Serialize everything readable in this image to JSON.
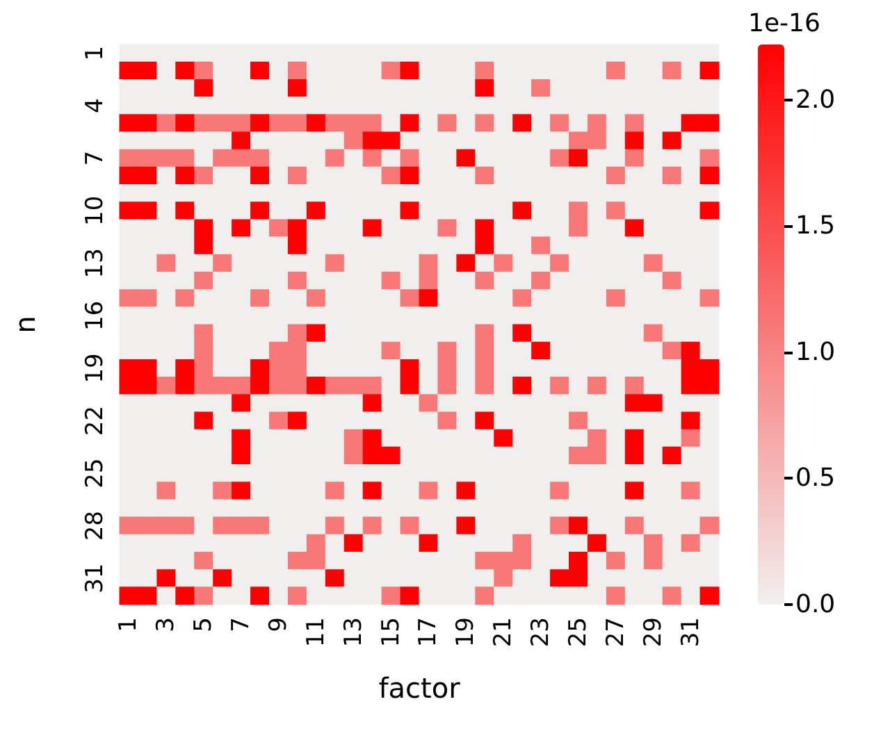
{
  "chart_data": {
    "type": "heatmap",
    "xlabel": "factor",
    "ylabel": "n",
    "clabel": "1e-16",
    "categories": [
      "1",
      null,
      "3",
      null,
      "5",
      null,
      "7",
      null,
      "9",
      null,
      "11",
      null,
      "13",
      null,
      "15",
      null,
      "17",
      null,
      "19",
      null,
      "21",
      null,
      "23",
      null,
      "25",
      null,
      "27",
      null,
      "29",
      null,
      "31",
      null
    ],
    "y_categories": [
      "1",
      null,
      null,
      "4",
      null,
      null,
      "7",
      null,
      null,
      "10",
      null,
      null,
      "13",
      null,
      null,
      "16",
      null,
      null,
      "19",
      null,
      null,
      "22",
      null,
      null,
      "25",
      null,
      null,
      "28",
      null,
      null,
      "31",
      null
    ],
    "clim": [
      0,
      2.22
    ],
    "cticks": [
      {
        "value": 0,
        "label": "0.0"
      },
      0.5,
      {
        "value": 1,
        "label": "1.0"
      },
      1.5,
      {
        "value": 2,
        "label": "2.0"
      }
    ],
    "cells": [
      [
        0,
        0,
        0,
        0,
        0,
        0,
        0,
        0,
        0,
        0,
        0,
        0,
        0,
        0,
        0,
        0,
        0,
        0,
        0,
        0,
        0,
        0,
        0,
        0,
        0,
        0,
        0,
        0,
        0,
        0,
        0,
        0
      ],
      [
        2.22,
        2.22,
        0,
        2.22,
        1.11,
        0,
        0,
        2.22,
        0,
        1.11,
        0,
        0,
        0,
        0,
        1.11,
        2.22,
        0,
        0,
        0,
        1.11,
        0,
        0,
        0,
        0,
        0,
        0,
        1.11,
        0,
        0,
        1.11,
        0,
        2.22
      ],
      [
        0,
        0,
        0,
        0,
        2.22,
        0,
        0,
        0,
        0,
        2.22,
        0,
        0,
        0,
        0,
        0,
        0,
        0,
        0,
        0,
        2.22,
        0,
        0,
        1.11,
        0,
        0,
        0,
        0,
        0,
        0,
        0,
        0,
        0
      ],
      [
        0,
        0,
        0,
        0,
        0,
        0,
        0,
        0,
        0,
        0,
        0,
        0,
        0,
        0,
        0,
        0,
        0,
        0,
        0,
        0,
        0,
        0,
        0,
        0,
        0,
        0,
        0,
        0,
        0,
        0,
        0,
        0
      ],
      [
        2.22,
        2.22,
        1.11,
        2.22,
        1.11,
        1.11,
        1.11,
        2.22,
        1.11,
        1.11,
        2.22,
        1.11,
        1.11,
        1.11,
        0,
        2.22,
        0,
        1.11,
        0,
        1.11,
        0,
        2.22,
        0,
        1.11,
        0,
        1.11,
        0,
        1.11,
        0,
        0,
        2.22,
        2.22
      ],
      [
        0,
        0,
        0,
        0,
        0,
        0,
        2.22,
        0,
        0,
        0,
        0,
        0,
        1.11,
        2.22,
        2.22,
        0,
        0,
        0,
        0,
        0,
        0,
        0,
        0,
        0,
        1.11,
        1.11,
        0,
        2.22,
        0,
        2.22,
        0,
        0
      ],
      [
        1.11,
        1.11,
        1.11,
        1.11,
        0,
        1.11,
        1.11,
        1.11,
        0,
        0,
        0,
        1.11,
        0,
        1.11,
        0,
        1.11,
        0,
        0,
        2.22,
        0,
        0,
        0,
        0,
        1.11,
        2.22,
        0,
        0,
        1.11,
        0,
        0,
        0,
        1.11
      ],
      [
        2.22,
        2.22,
        0,
        2.22,
        1.11,
        0,
        0,
        2.22,
        0,
        1.11,
        0,
        0,
        0,
        0,
        1.11,
        2.22,
        0,
        0,
        0,
        1.11,
        0,
        0,
        0,
        0,
        0,
        0,
        1.11,
        0,
        0,
        1.11,
        0,
        2.22
      ],
      [
        0,
        0,
        0,
        0,
        0,
        0,
        0,
        0,
        0,
        0,
        0,
        0,
        0,
        0,
        0,
        0,
        0,
        0,
        0,
        0,
        0,
        0,
        0,
        0,
        0,
        0,
        0,
        0,
        0,
        0,
        0,
        0
      ],
      [
        2.22,
        2.22,
        0,
        2.22,
        0,
        0,
        0,
        2.22,
        0,
        0,
        2.22,
        0,
        0,
        0,
        0,
        2.22,
        0,
        0,
        0,
        0,
        0,
        2.22,
        0,
        0,
        1.11,
        0,
        1.11,
        0,
        0,
        0,
        0,
        2.22
      ],
      [
        0,
        0,
        0,
        0,
        2.22,
        0,
        2.22,
        0,
        1.11,
        2.22,
        0,
        0,
        0,
        2.22,
        0,
        0,
        0,
        1.11,
        0,
        2.22,
        0,
        0,
        0,
        0,
        1.11,
        0,
        0,
        2.22,
        0,
        0,
        0,
        0
      ],
      [
        0,
        0,
        0,
        0,
        2.22,
        0,
        0,
        0,
        0,
        2.22,
        0,
        0,
        0,
        0,
        0,
        0,
        0,
        0,
        0,
        2.22,
        0,
        0,
        1.11,
        0,
        0,
        0,
        0,
        0,
        0,
        0,
        0,
        0
      ],
      [
        0,
        0,
        1.11,
        0,
        0,
        1.11,
        0,
        0,
        0,
        0,
        0,
        1.11,
        0,
        0,
        0,
        0,
        1.11,
        0,
        2.22,
        0,
        1.11,
        0,
        0,
        1.11,
        0,
        0,
        0,
        0,
        1.11,
        0,
        0,
        0
      ],
      [
        0,
        0,
        0,
        0,
        1.11,
        0,
        0,
        0,
        0,
        1.11,
        0,
        0,
        0,
        0,
        1.11,
        0,
        1.11,
        0,
        0,
        1.11,
        0,
        0,
        1.11,
        0,
        0,
        0,
        0,
        0,
        0,
        1.11,
        0,
        0
      ],
      [
        1.11,
        1.11,
        0,
        1.11,
        0,
        0,
        0,
        1.11,
        0,
        0,
        1.11,
        0,
        0,
        0,
        0,
        1.11,
        2.22,
        0,
        0,
        0,
        0,
        1.11,
        0,
        0,
        0,
        0,
        1.11,
        0,
        0,
        0,
        0,
        1.11
      ],
      [
        0,
        0,
        0,
        0,
        0,
        0,
        0,
        0,
        0,
        0,
        0,
        0,
        0,
        0,
        0,
        0,
        0,
        0,
        0,
        0,
        0,
        0,
        0,
        0,
        0,
        0,
        0,
        0,
        0,
        0,
        0,
        0
      ],
      [
        0,
        0,
        0,
        0,
        1.11,
        0,
        0,
        0,
        0,
        1.11,
        2.22,
        0,
        0,
        0,
        0,
        0,
        0,
        0,
        0,
        1.11,
        0,
        2.22,
        0,
        0,
        0,
        0,
        0,
        0,
        1.11,
        0,
        0,
        0
      ],
      [
        0,
        0,
        0,
        0,
        1.11,
        0,
        0,
        0,
        1.11,
        1.11,
        0,
        0,
        0,
        0,
        1.11,
        0,
        0,
        1.11,
        0,
        1.11,
        0,
        0,
        2.22,
        0,
        0,
        0,
        0,
        0,
        0,
        1.11,
        2.22,
        0
      ],
      [
        2.22,
        2.22,
        0,
        2.22,
        1.11,
        0,
        0,
        2.22,
        1.11,
        1.11,
        0,
        0,
        0,
        0,
        0,
        2.22,
        0,
        1.11,
        0,
        1.11,
        0,
        0,
        0,
        0,
        0,
        0,
        0,
        0,
        0,
        0,
        2.22,
        2.22
      ],
      [
        2.22,
        2.22,
        1.11,
        2.22,
        1.11,
        1.11,
        1.11,
        2.22,
        1.11,
        1.11,
        2.22,
        1.11,
        1.11,
        1.11,
        0,
        2.22,
        0,
        1.11,
        0,
        1.11,
        0,
        2.22,
        0,
        1.11,
        0,
        1.11,
        0,
        1.11,
        0,
        0,
        2.22,
        2.22
      ],
      [
        0,
        0,
        0,
        0,
        0,
        0,
        2.22,
        0,
        0,
        0,
        0,
        0,
        0,
        2.22,
        0,
        0,
        1.11,
        0,
        0,
        0,
        0,
        0,
        0,
        0,
        0,
        0,
        0,
        2.22,
        2.22,
        0,
        0,
        0
      ],
      [
        0,
        0,
        0,
        0,
        2.22,
        0,
        0,
        0,
        1.11,
        2.22,
        0,
        0,
        0,
        0,
        0,
        0,
        0,
        1.11,
        0,
        2.22,
        0,
        0,
        0,
        0,
        1.11,
        0,
        0,
        0,
        0,
        0,
        2.22,
        0
      ],
      [
        0,
        0,
        0,
        0,
        0,
        0,
        2.22,
        0,
        0,
        0,
        0,
        0,
        1.11,
        2.22,
        0,
        0,
        0,
        0,
        0,
        0,
        2.22,
        0,
        0,
        0,
        0,
        1.11,
        0,
        2.22,
        0,
        0,
        1.11,
        0
      ],
      [
        0,
        0,
        0,
        0,
        0,
        0,
        2.22,
        0,
        0,
        0,
        0,
        0,
        1.11,
        2.22,
        2.22,
        0,
        0,
        0,
        0,
        0,
        0,
        0,
        0,
        0,
        1.11,
        1.11,
        0,
        2.22,
        0,
        2.22,
        0,
        0
      ],
      [
        0,
        0,
        0,
        0,
        0,
        0,
        0,
        0,
        0,
        0,
        0,
        0,
        0,
        0,
        0,
        0,
        0,
        0,
        0,
        0,
        0,
        0,
        0,
        0,
        0,
        0,
        0,
        0,
        0,
        0,
        0,
        0
      ],
      [
        0,
        0,
        1.11,
        0,
        0,
        1.11,
        2.22,
        0,
        0,
        0,
        0,
        1.11,
        0,
        2.22,
        0,
        0,
        1.11,
        0,
        2.22,
        0,
        0,
        0,
        0,
        1.11,
        0,
        0,
        0,
        2.22,
        0,
        0,
        1.11,
        0
      ],
      [
        0,
        0,
        0,
        0,
        0,
        0,
        0,
        0,
        0,
        0,
        0,
        0,
        0,
        0,
        0,
        0,
        0,
        0,
        0,
        0,
        0,
        0,
        0,
        0,
        0,
        0,
        0,
        0,
        0,
        0,
        0,
        0
      ],
      [
        1.11,
        1.11,
        1.11,
        1.11,
        0,
        1.11,
        1.11,
        1.11,
        0,
        0,
        0,
        1.11,
        0,
        1.11,
        0,
        1.11,
        0,
        0,
        2.22,
        0,
        0,
        0,
        0,
        1.11,
        2.22,
        0,
        0,
        1.11,
        0,
        0,
        0,
        1.11
      ],
      [
        0,
        0,
        0,
        0,
        0,
        0,
        0,
        0,
        0,
        0,
        1.11,
        0,
        2.22,
        0,
        0,
        0,
        2.22,
        0,
        0,
        0,
        0,
        1.11,
        0,
        0,
        0,
        2.22,
        0,
        0,
        1.11,
        0,
        1.11,
        0
      ],
      [
        0,
        0,
        0,
        0,
        1.11,
        0,
        0,
        0,
        0,
        1.11,
        1.11,
        0,
        0,
        0,
        0,
        0,
        0,
        0,
        0,
        1.11,
        1.11,
        1.11,
        0,
        0,
        2.22,
        0,
        1.11,
        0,
        1.11,
        0,
        0,
        0
      ],
      [
        0,
        0,
        2.22,
        0,
        0,
        2.22,
        0,
        0,
        0,
        0,
        0,
        2.22,
        0,
        0,
        0,
        0,
        0,
        0,
        0,
        0,
        1.11,
        0,
        0,
        2.22,
        2.22,
        0,
        0,
        0,
        0,
        0,
        0,
        0
      ],
      [
        2.22,
        2.22,
        0,
        2.22,
        1.11,
        0,
        0,
        2.22,
        0,
        1.11,
        0,
        0,
        0,
        0,
        1.11,
        2.22,
        0,
        0,
        0,
        1.11,
        0,
        0,
        0,
        0,
        0,
        0,
        1.11,
        0,
        0,
        1.11,
        0,
        2.22
      ]
    ]
  }
}
